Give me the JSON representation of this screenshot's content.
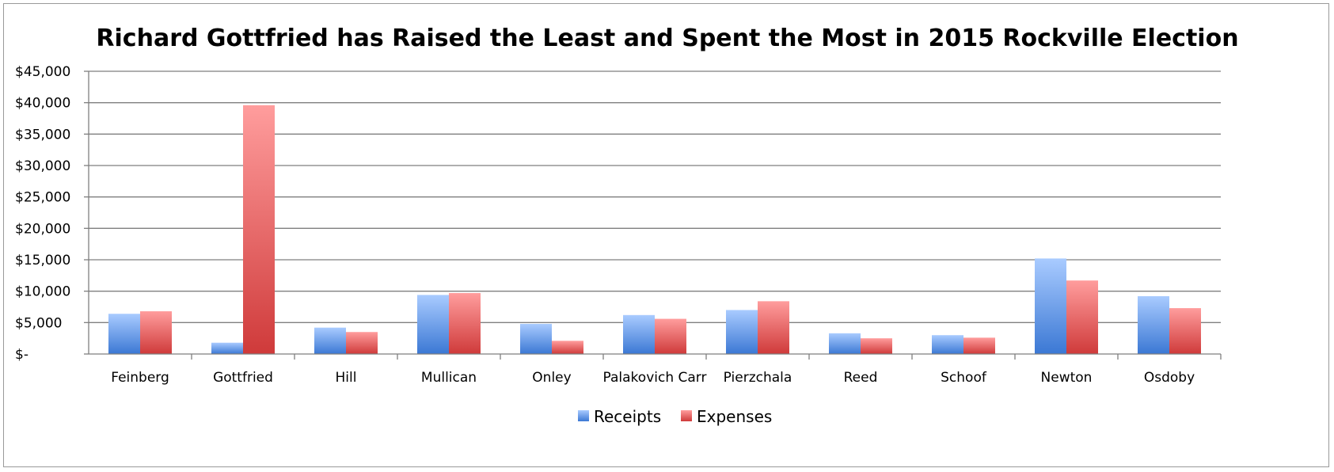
{
  "chart_data": {
    "type": "bar",
    "title": "Richard Gottfried has Raised the Least and Spent the Most in 2015 Rockville Election",
    "xlabel": "",
    "ylabel": "",
    "categories": [
      "Feinberg",
      "Gottfried",
      "Hill",
      "Mullican",
      "Onley",
      "Palakovich Carr",
      "Pierzchala",
      "Reed",
      "Schoof",
      "Newton",
      "Osdoby"
    ],
    "series": [
      {
        "name": "Receipts",
        "values": [
          6400,
          1800,
          4200,
          9400,
          4800,
          6200,
          7000,
          3300,
          3000,
          15200,
          9200
        ],
        "color": "#4f86d8"
      },
      {
        "name": "Expenses",
        "values": [
          6800,
          39600,
          3500,
          9700,
          2100,
          5600,
          8400,
          2500,
          2600,
          11700,
          7300
        ],
        "color": "#d94848"
      }
    ],
    "ylim": [
      0,
      45000
    ],
    "yticks": [
      0,
      5000,
      10000,
      15000,
      20000,
      25000,
      30000,
      35000,
      40000,
      45000
    ],
    "ytick_labels": [
      "$-",
      "$5,000",
      "$10,000",
      "$15,000",
      "$20,000",
      "$25,000",
      "$30,000",
      "$35,000",
      "$40,000",
      "$45,000"
    ],
    "grid": true,
    "legend_position": "bottom"
  }
}
